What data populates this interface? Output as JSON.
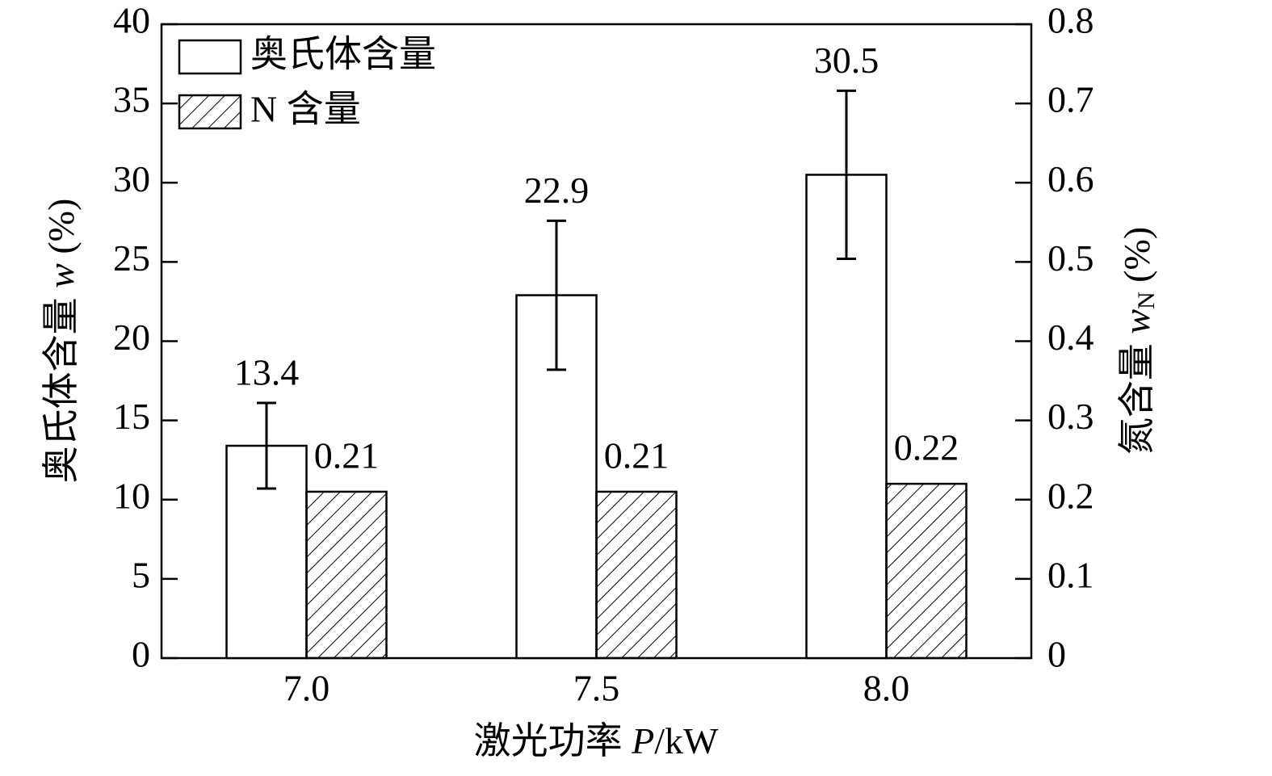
{
  "chart_data": {
    "type": "bar",
    "categories": [
      "7.0",
      "7.5",
      "8.0"
    ],
    "xlabel": [
      "激光功率 ",
      "P",
      "/kW"
    ],
    "ylabel": [
      "奥氏体含量 ",
      "w",
      " (%)"
    ],
    "y2label": [
      "氮含量 ",
      "w",
      "N",
      " (%)"
    ],
    "series": [
      {
        "name": "奥氏体含量",
        "color": "#ffffff",
        "hatch": false,
        "values": [
          13.4,
          22.9,
          30.5
        ],
        "errors": [
          2.7,
          4.7,
          5.3
        ]
      },
      {
        "name": "N 含量",
        "color": "#ffffff",
        "hatch": true,
        "axis": "y2",
        "values": [
          0.21,
          0.21,
          0.22
        ]
      }
    ],
    "ylim": [
      0,
      40
    ],
    "yticks": [
      0,
      5,
      10,
      15,
      20,
      25,
      30,
      35,
      40
    ],
    "y2lim": [
      0,
      0.8
    ],
    "y2ticks": [
      0,
      0.1,
      0.2,
      0.3,
      0.4,
      0.5,
      0.6,
      0.7,
      0.8
    ],
    "legend": "upper-left",
    "grid": false
  }
}
